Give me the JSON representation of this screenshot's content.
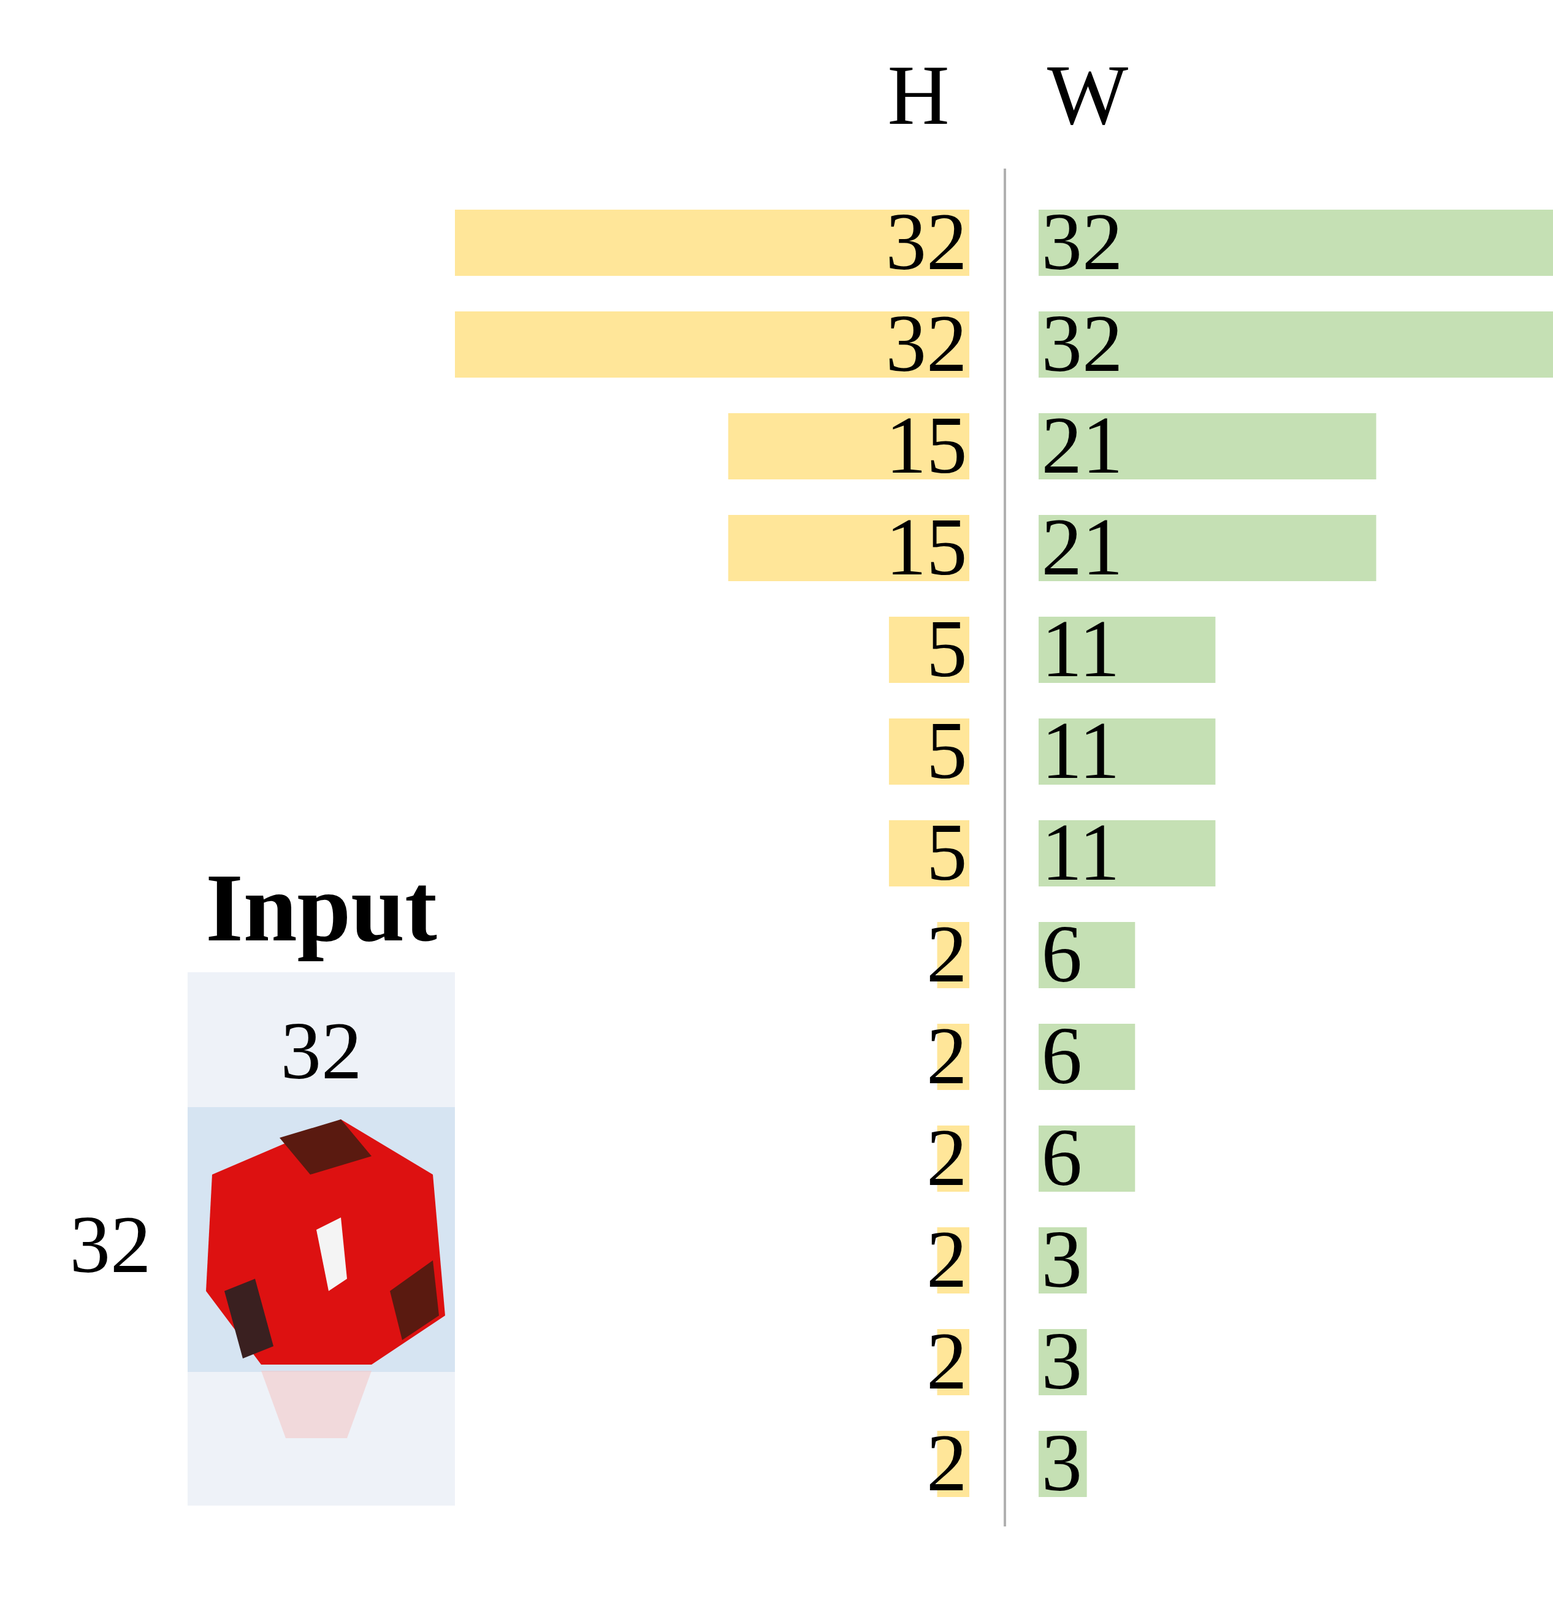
{
  "chart_data": {
    "type": "bar",
    "orientation": "horizontal",
    "categories": [
      null,
      null,
      null,
      null,
      null,
      null,
      null,
      null,
      null,
      null,
      null,
      null,
      null
    ],
    "series": [
      {
        "name": "H",
        "color": "#ffe699",
        "values": [
          32,
          32,
          15,
          15,
          5,
          5,
          5,
          2,
          2,
          2,
          2,
          2,
          2
        ]
      },
      {
        "name": "W",
        "color": "#c5e0b4",
        "values": [
          32,
          32,
          21,
          21,
          11,
          11,
          11,
          6,
          6,
          6,
          3,
          3,
          3
        ]
      }
    ],
    "xlim": [
      0,
      32
    ],
    "data_labels": true,
    "tick_labels": false
  },
  "input_panel": {
    "label": "Input",
    "width": 32,
    "height": 32
  }
}
